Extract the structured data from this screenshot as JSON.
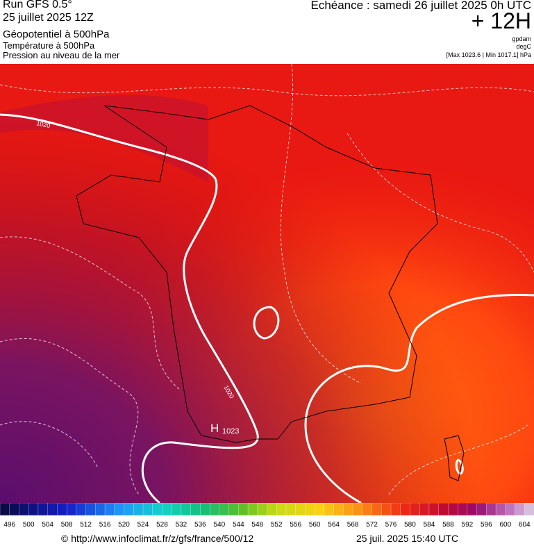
{
  "header": {
    "run": "Run GFS 0.5°",
    "run_date": "25 juillet 2025 12Z",
    "field": "Géopotentiel à 500hPa",
    "field2": "Température à 500hPa",
    "field3": "Pression au niveau de la mer",
    "valid": "Echéance : samedi 26 juillet 2025 0h UTC",
    "lead": "+ 12H",
    "unit1": "gpdam",
    "unit2": "degC",
    "pressure_range": "[Max 1023.6 | Min 1017.1] hPa"
  },
  "map": {
    "isobar_labels": [
      "1020",
      "1020"
    ],
    "high": {
      "symbol": "H",
      "value": "1023"
    }
  },
  "scale": {
    "labels": [
      "496",
      "500",
      "504",
      "508",
      "512",
      "516",
      "520",
      "524",
      "528",
      "532",
      "536",
      "540",
      "544",
      "548",
      "552",
      "556",
      "560",
      "564",
      "568",
      "572",
      "576",
      "580",
      "584",
      "588",
      "592",
      "596",
      "600",
      "604"
    ]
  },
  "footer": {
    "source": "© http://www.infoclimat.fr/z/gfs/france/500/12",
    "timestamp": "25 juil. 2025 15:40 UTC"
  }
}
